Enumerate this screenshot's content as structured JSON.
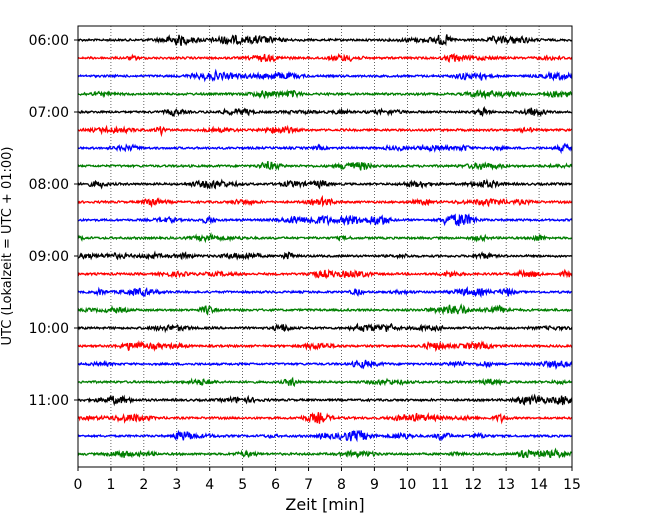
{
  "chart_data": {
    "type": "line",
    "subtype": "helicorder",
    "title": "",
    "xlabel": "Zeit  [min]",
    "ylabel": "UTC (Lokalzeit = UTC + 01:00)",
    "xlim": [
      0,
      15
    ],
    "x_ticks": [
      "0",
      "1",
      "2",
      "3",
      "4",
      "5",
      "6",
      "7",
      "8",
      "9",
      "10",
      "11",
      "12",
      "13",
      "14",
      "15"
    ],
    "y_ticks": [
      "06:00",
      "07:00",
      "08:00",
      "09:00",
      "10:00",
      "11:00"
    ],
    "y_tick_rows": [
      0,
      4,
      8,
      12,
      16,
      20
    ],
    "row_start_times": [
      "06:00",
      "06:15",
      "06:30",
      "06:45",
      "07:00",
      "07:15",
      "07:30",
      "07:45",
      "08:00",
      "08:15",
      "08:30",
      "08:45",
      "09:00",
      "09:15",
      "09:30",
      "09:45",
      "10:00",
      "10:15",
      "10:30",
      "10:45",
      "11:00",
      "11:15",
      "11:30",
      "11:45"
    ],
    "trace_colors": [
      "#000000",
      "#ff0000",
      "#0000ff",
      "#007f00"
    ],
    "row_minutes": 15,
    "grid": "vertical dotted at each minute"
  }
}
